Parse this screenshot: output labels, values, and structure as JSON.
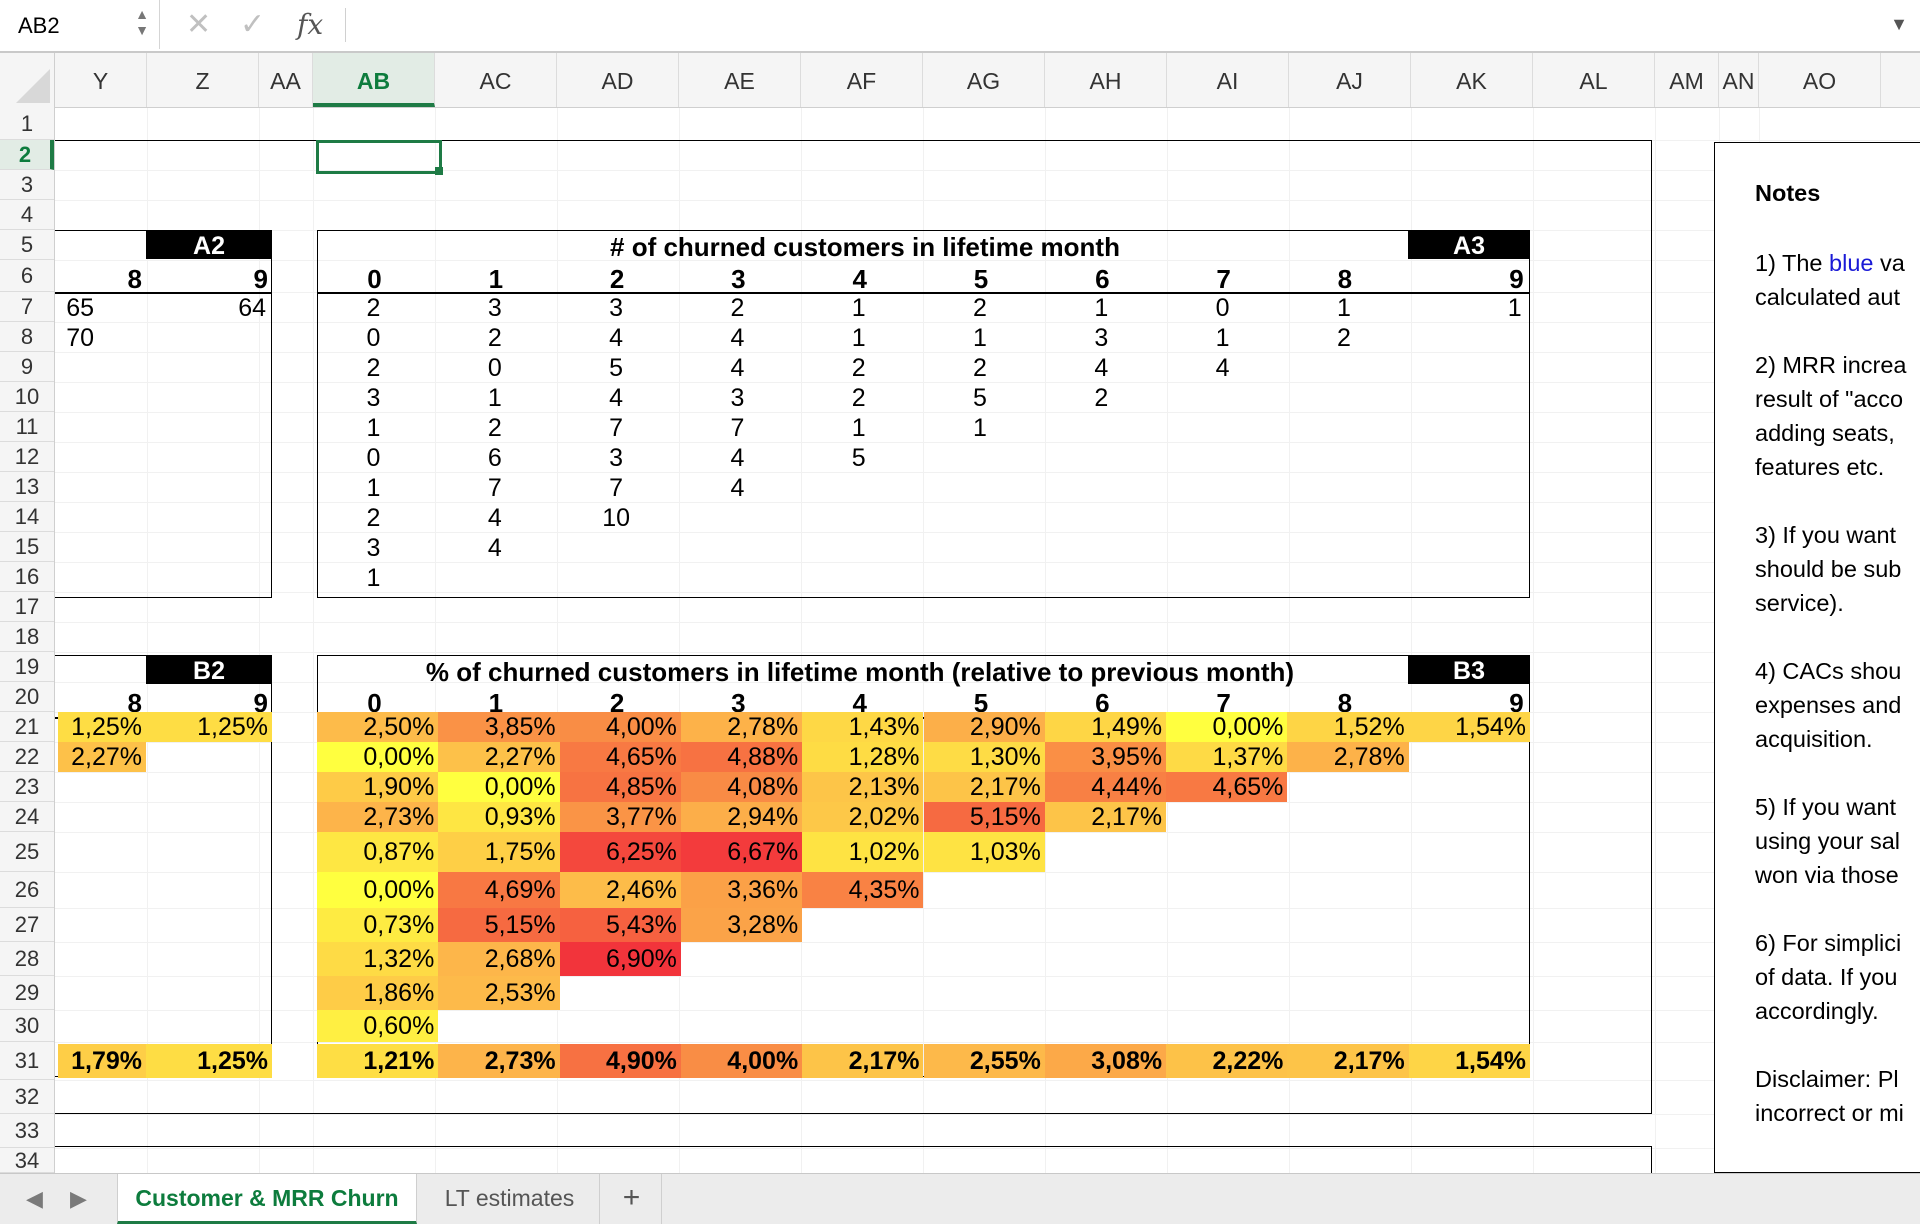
{
  "namebox": {
    "value": "AB2"
  },
  "formula": {
    "fx": "fx",
    "cancel": "✕",
    "enter": "✓",
    "value": ""
  },
  "columns": [
    "Y",
    "Z",
    "AA",
    "AB",
    "AC",
    "AD",
    "AE",
    "AF",
    "AG",
    "AH",
    "AI",
    "AJ",
    "AK",
    "AL",
    "AM",
    "AN",
    "AO"
  ],
  "rows": [
    "1",
    "2",
    "3",
    "4",
    "5",
    "6",
    "7",
    "8",
    "9",
    "10",
    "11",
    "12",
    "13",
    "14",
    "15",
    "16",
    "17",
    "18",
    "19",
    "20",
    "21",
    "22",
    "23",
    "24",
    "25",
    "26",
    "27",
    "28",
    "29",
    "30",
    "31",
    "32",
    "33",
    "34"
  ],
  "selected": {
    "column": "AB",
    "row": "2"
  },
  "tableA2": {
    "tag": "A2",
    "cols": [
      "8",
      "9"
    ],
    "rows": [
      [
        "65",
        "64"
      ],
      [
        "70",
        ""
      ]
    ]
  },
  "tableA3": {
    "tag": "A3",
    "title": "# of churned customers in lifetime month",
    "cols": [
      "0",
      "1",
      "2",
      "3",
      "4",
      "5",
      "6",
      "7",
      "8",
      "9"
    ],
    "rows": [
      [
        "2",
        "3",
        "3",
        "2",
        "1",
        "2",
        "1",
        "0",
        "1",
        "1"
      ],
      [
        "0",
        "2",
        "4",
        "4",
        "1",
        "1",
        "3",
        "1",
        "2"
      ],
      [
        "2",
        "0",
        "5",
        "4",
        "2",
        "2",
        "4",
        "4"
      ],
      [
        "3",
        "1",
        "4",
        "3",
        "2",
        "5",
        "2"
      ],
      [
        "1",
        "2",
        "7",
        "7",
        "1",
        "1"
      ],
      [
        "0",
        "6",
        "3",
        "4",
        "5"
      ],
      [
        "1",
        "7",
        "7",
        "4"
      ],
      [
        "2",
        "4",
        "10"
      ],
      [
        "3",
        "4"
      ],
      [
        "1"
      ]
    ]
  },
  "tableB2": {
    "tag": "B2",
    "cols": [
      "8",
      "9"
    ],
    "rows": [
      [
        "1,25%",
        "1,25%"
      ],
      [
        "2,27%"
      ]
    ],
    "total": [
      "1,79%",
      "1,25%"
    ]
  },
  "tableB3": {
    "tag": "B3",
    "title": "% of churned customers in lifetime month (relative to previous month)",
    "cols": [
      "0",
      "1",
      "2",
      "3",
      "4",
      "5",
      "6",
      "7",
      "8",
      "9"
    ],
    "rows": [
      [
        "2,50%",
        "3,85%",
        "4,00%",
        "2,78%",
        "1,43%",
        "2,90%",
        "1,49%",
        "0,00%",
        "1,52%",
        "1,54%"
      ],
      [
        "0,00%",
        "2,27%",
        "4,65%",
        "4,88%",
        "1,28%",
        "1,30%",
        "3,95%",
        "1,37%",
        "2,78%"
      ],
      [
        "1,90%",
        "0,00%",
        "4,85%",
        "4,08%",
        "2,13%",
        "2,17%",
        "4,44%",
        "4,65%"
      ],
      [
        "2,73%",
        "0,93%",
        "3,77%",
        "2,94%",
        "2,02%",
        "5,15%",
        "2,17%"
      ],
      [
        "0,87%",
        "1,75%",
        "6,25%",
        "6,67%",
        "1,02%",
        "1,03%"
      ],
      [
        "0,00%",
        "4,69%",
        "2,46%",
        "3,36%",
        "4,35%"
      ],
      [
        "0,73%",
        "5,15%",
        "5,43%",
        "3,28%"
      ],
      [
        "1,32%",
        "2,68%",
        "6,90%"
      ],
      [
        "1,86%",
        "2,53%"
      ],
      [
        "0,60%"
      ]
    ],
    "total": [
      "1,21%",
      "2,73%",
      "4,90%",
      "4,00%",
      "2,17%",
      "2,55%",
      "3,08%",
      "2,22%",
      "2,17%",
      "1,54%"
    ]
  },
  "notes": {
    "title": "Notes",
    "lines": [
      {
        "pre": "1) The ",
        "blue": "blue",
        "post": " va"
      },
      {
        "pre": "calculated aut"
      },
      {
        "pre": "2) MRR increa"
      },
      {
        "pre": "result of \"acco"
      },
      {
        "pre": "adding seats,"
      },
      {
        "pre": "features etc."
      },
      {
        "pre": "3) If you want"
      },
      {
        "pre": "should be sub"
      },
      {
        "pre": "service)."
      },
      {
        "pre": "4) CACs shou"
      },
      {
        "pre": "expenses and"
      },
      {
        "pre": "acquisition."
      },
      {
        "pre": "5) If you want"
      },
      {
        "pre": "using your sal"
      },
      {
        "pre": "won via those"
      },
      {
        "pre": "6) For simplici"
      },
      {
        "pre": "of data. If you"
      },
      {
        "pre": "accordingly."
      },
      {
        "pre": "Disclaimer: Pl"
      },
      {
        "pre": "incorrect or mi"
      }
    ]
  },
  "heat_colors": {
    "low": "#ffff3f",
    "mid": "#fdb84a",
    "high": "#f2343b"
  },
  "tabs": {
    "active": "Customer & MRR Churn",
    "other": "LT estimates",
    "add": "+"
  },
  "nav": {
    "prev": "◀",
    "next": "▶"
  }
}
